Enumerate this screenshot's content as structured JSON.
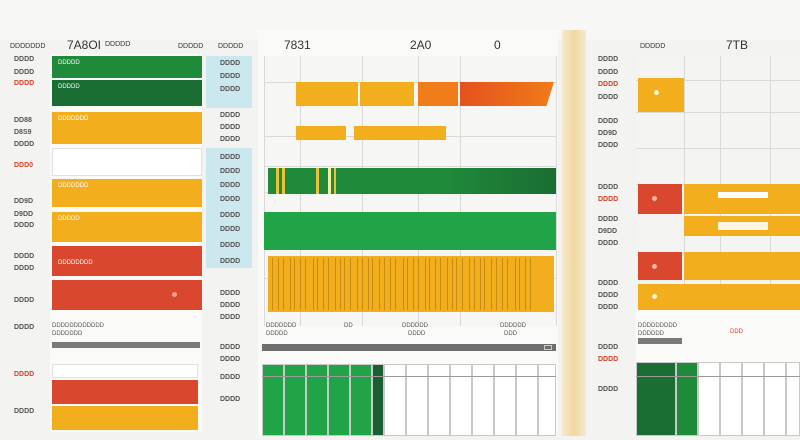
{
  "header": {
    "left_value": "7A8OI",
    "left_label": "DDDDDDD",
    "left_small": "DDDDD",
    "left_col_label": "DDDDD",
    "center_label": "DDDDD",
    "center_value_a": "7831",
    "center_value_b": "2A0",
    "center_value_c": "0",
    "right_label": "DDDDD",
    "right_value": "7TB"
  },
  "left_rows": [
    {
      "label": "DDDD",
      "red": false
    },
    {
      "label": "DDDD",
      "red": false
    },
    {
      "label": "DDDD",
      "red": true
    },
    {
      "label": "DD88",
      "red": false
    },
    {
      "label": "D8S9",
      "red": false
    },
    {
      "label": "DDDD",
      "red": false
    },
    {
      "label": "DDD0",
      "red": true
    },
    {
      "label": "DD9D",
      "red": false
    },
    {
      "label": "D9DD",
      "red": false
    },
    {
      "label": "DDDD",
      "red": false
    },
    {
      "label": "DDDD",
      "red": false
    },
    {
      "label": "DDDD",
      "red": false
    },
    {
      "label": "DDDD",
      "red": false
    },
    {
      "label": "DDDD",
      "red": false
    },
    {
      "label": "DDDD",
      "red": true
    },
    {
      "label": "DDDD",
      "red": false
    }
  ],
  "left_bars": [
    {
      "text": "DDDDD",
      "color": "#1f8a3a"
    },
    {
      "text": "DDDDD",
      "color": "#1b6e33"
    },
    {
      "text": "DDDDDDD",
      "color": "#f2ae1c"
    },
    {
      "text": "",
      "color": "#ffffff"
    },
    {
      "text": "DDDDDDD",
      "color": "#f2ae1c"
    },
    {
      "text": "DDDDD",
      "color": "#f2ae1c"
    },
    {
      "text": "DDDDDDDD",
      "color": "#d9472f"
    },
    {
      "text": "",
      "color": "#d9472f"
    }
  ],
  "mid_left_rows": [
    "DDDD",
    "DDDD",
    "DDDD",
    "DDDD",
    "DDDD",
    "DDDD",
    "DDDD",
    "DDDD",
    "DDDD",
    "DDDD",
    "DDDD",
    "DDDD",
    "DDDD",
    "DDDD",
    "DDDD",
    "DDDD",
    "DDDD",
    "DDDD",
    "DDDD",
    "DDDD",
    "DDDD"
  ],
  "center_footer": {
    "label_a": "DDDDDDD",
    "label_b": "DDDDD",
    "label_c": "DD",
    "label_d": "DDDDDD",
    "label_e": "DDDD",
    "label_f": "DDDDDD",
    "label_g": "DDD"
  },
  "left_footer": {
    "label_a": "DDDDDDDDDDDD",
    "label_b": "DDDDDDD"
  },
  "right_rows": [
    {
      "label": "DDDD",
      "red": false
    },
    {
      "label": "DDDD",
      "red": false
    },
    {
      "label": "DDDD",
      "red": true
    },
    {
      "label": "DDDD",
      "red": false
    },
    {
      "label": "DDDD",
      "red": false
    },
    {
      "label": "DD9D",
      "red": false
    },
    {
      "label": "DDDD",
      "red": false
    },
    {
      "label": "DDDD",
      "red": false
    },
    {
      "label": "DDDD",
      "red": true
    },
    {
      "label": "DDDD",
      "red": false
    },
    {
      "label": "D9DD",
      "red": false
    },
    {
      "label": "DDDD",
      "red": false
    },
    {
      "label": "DDDD",
      "red": false
    },
    {
      "label": "DDDD",
      "red": false
    },
    {
      "label": "DDDD",
      "red": false
    },
    {
      "label": "DDDD",
      "red": false
    },
    {
      "label": "DDDD",
      "red": true
    },
    {
      "label": "DDDD",
      "red": false
    }
  ],
  "right_footer": {
    "label_a": "DDDDDDDDD",
    "label_b": "DDDDDD",
    "label_c": "DDD"
  },
  "colors": {
    "green": "#1f8a3a",
    "dark_green": "#1b6e33",
    "bright_green": "#21a348",
    "yellow": "#f2ae1c",
    "orange": "#f07c1a",
    "red": "#d9472f",
    "teal": "#bfe3ec"
  }
}
